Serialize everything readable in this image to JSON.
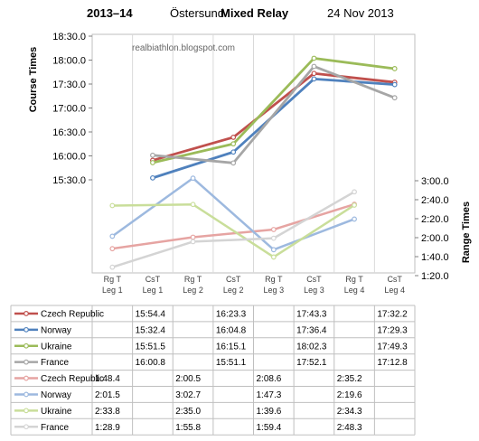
{
  "header": {
    "season": "2013–14",
    "venue": "Östersund",
    "event": "Mixed Relay",
    "date": "24 Nov 2013"
  },
  "watermark": "realbiathlon.blogspot.com",
  "chart_data": {
    "type": "line",
    "columns": [
      [
        "Rg T",
        "Leg  1"
      ],
      [
        "CsT",
        "Leg 1"
      ],
      [
        "Rg T",
        "Leg 2"
      ],
      [
        "CsT",
        "Leg 2"
      ],
      [
        "Rg T",
        "Leg 3"
      ],
      [
        "CsT",
        "Leg 3"
      ],
      [
        "Rg T",
        "Leg 4"
      ],
      [
        "CsT",
        "Leg 4"
      ]
    ],
    "course_axis": {
      "label": "Course  Times",
      "ticks": [
        "15:30.0",
        "16:00.0",
        "16:30.0",
        "17:00.0",
        "17:30.0",
        "18:00.0",
        "18:30.0"
      ],
      "range_seconds": [
        930,
        1110
      ]
    },
    "range_axis": {
      "label": "Range  Times",
      "ticks": [
        "1:20.0",
        "1:40.0",
        "2:00.0",
        "2:20.0",
        "2:40.0",
        "3:00.0"
      ],
      "range_seconds": [
        80,
        180
      ]
    },
    "colors": {
      "Czech Republic": "#c0504d",
      "Norway": "#4f81bd",
      "Ukraine": "#9bbb59",
      "France": "#a6a6a6",
      "Czech Republic range": "#e6a4a2",
      "Norway range": "#9db9df",
      "Ukraine range": "#c9de9a",
      "France range": "#d4d4d4"
    },
    "course_series": [
      {
        "name": "Czech Republic",
        "values": [
          null,
          "15:54.4",
          null,
          "16:23.3",
          null,
          "17:43.3",
          null,
          "17:32.2"
        ]
      },
      {
        "name": "Norway",
        "values": [
          null,
          "15:32.4",
          null,
          "16:04.8",
          null,
          "17:36.4",
          null,
          "17:29.3"
        ]
      },
      {
        "name": "Ukraine",
        "values": [
          null,
          "15:51.5",
          null,
          "16:15.1",
          null,
          "18:02.3",
          null,
          "17:49.3"
        ]
      },
      {
        "name": "France",
        "values": [
          null,
          "16:00.8",
          null,
          "15:51.1",
          null,
          "17:52.1",
          null,
          "17:12.8"
        ]
      }
    ],
    "range_series": [
      {
        "name": "Czech Republic",
        "values": [
          "1:48.4",
          null,
          "2:00.5",
          null,
          "2:08.6",
          null,
          "2:35.2",
          null
        ]
      },
      {
        "name": "Norway",
        "values": [
          "2:01.5",
          null,
          "3:02.7",
          null,
          "1:47.3",
          null,
          "2:19.6",
          null
        ]
      },
      {
        "name": "Ukraine",
        "values": [
          "2:33.8",
          null,
          "2:35.0",
          null,
          "1:39.6",
          null,
          "2:34.3",
          null
        ]
      },
      {
        "name": "France",
        "values": [
          "1:28.9",
          null,
          "1:55.8",
          null,
          "1:59.4",
          null,
          "2:48.3",
          null
        ]
      }
    ]
  }
}
